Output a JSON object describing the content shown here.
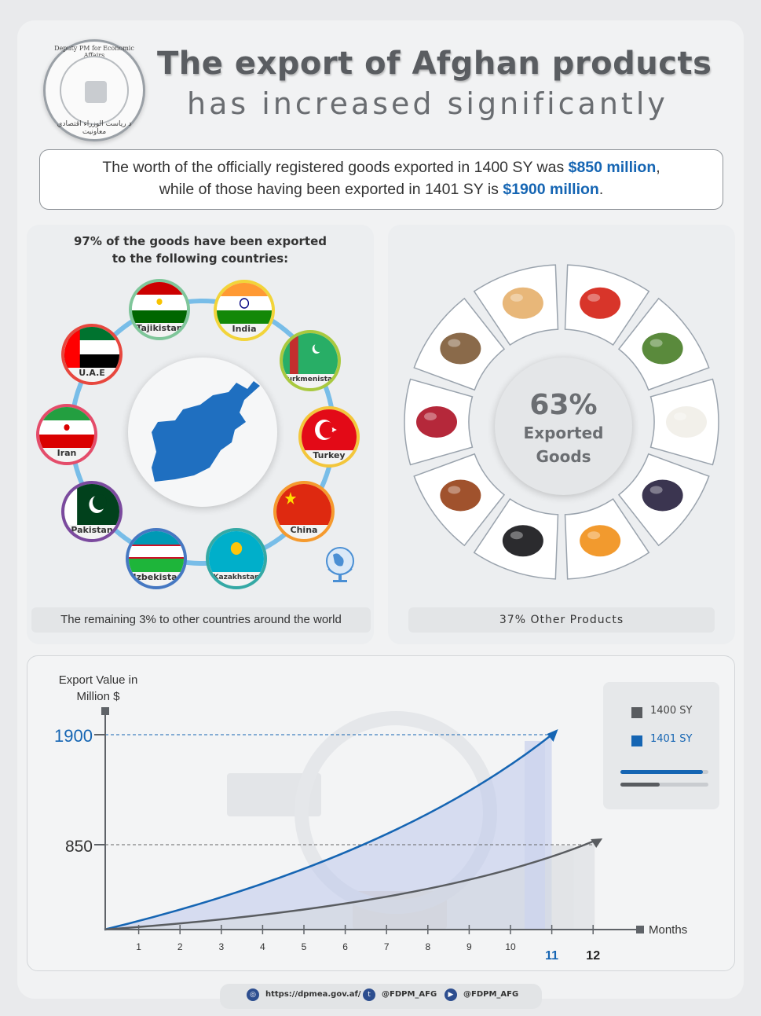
{
  "header": {
    "seal_text_top": "Deputy PM for Economic Affairs",
    "seal_text_bottom": "د ریاست الوزراء اقتصادي معاونیت",
    "title_line1": "The export of Afghan products",
    "title_line2": "has increased significantly"
  },
  "intro": {
    "part1": "The worth of the officially registered goods exported in 1400 SY was ",
    "value1": "$850 million",
    "part2": ",",
    "part3": "while of those having been exported in 1401 SY is ",
    "value2": "$1900 million",
    "part4": "."
  },
  "countries": {
    "title_line1": "97% of the goods have been exported",
    "title_line2": "to the following countries:",
    "items": [
      {
        "name": "Tajikistan",
        "color": "#7fc69a"
      },
      {
        "name": "India",
        "color": "#f2d43a"
      },
      {
        "name": "Turkmenistan",
        "color": "#a9c93f"
      },
      {
        "name": "Turkey",
        "color": "#f3c63b"
      },
      {
        "name": "China",
        "color": "#f59a2e"
      },
      {
        "name": "Kazakhstan",
        "color": "#35a9a5"
      },
      {
        "name": "Uzbekistan",
        "color": "#4678c2"
      },
      {
        "name": "Pakistan",
        "color": "#7b4a9e"
      },
      {
        "name": "Iran",
        "color": "#e44c6a"
      },
      {
        "name": "U.A.E",
        "color": "#e7473e"
      }
    ],
    "remaining": "The remaining 3% to other countries around the world"
  },
  "products": {
    "percent": "63%",
    "label_line1": "Exported",
    "label_line2": "Goods",
    "other": "37% Other Products",
    "icons": [
      "pine-nuts",
      "tomatoes",
      "saffron-field",
      "cotton",
      "grapes",
      "apricots",
      "coal",
      "raisins",
      "pomegranate",
      "dried-figs"
    ]
  },
  "chart_data": {
    "type": "area",
    "ylabel": "Export Value in Million $",
    "xlabel": "Months",
    "x": [
      1,
      2,
      3,
      4,
      5,
      6,
      7,
      8,
      9,
      10,
      11,
      12
    ],
    "yticks": [
      850,
      1900
    ],
    "series": [
      {
        "name": "1400 SY",
        "end_month": 12,
        "end_value": 850,
        "color": "#595c60"
      },
      {
        "name": "1401 SY",
        "end_month": 11,
        "end_value": 1900,
        "color": "#1565b3"
      }
    ],
    "highlight_ticks": {
      "11": "#1565b3",
      "12": "#222222"
    }
  },
  "legend": {
    "item1": "1400 SY",
    "item2": "1401 SY"
  },
  "footer": {
    "website": "https://dpmea.gov.af/",
    "twitter": "@FDPM_AFG",
    "youtube": "@FDPM_AFG"
  }
}
